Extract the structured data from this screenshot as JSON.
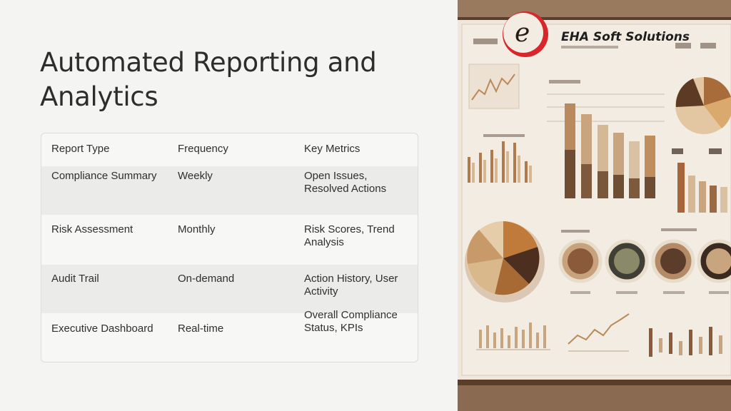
{
  "slide": {
    "title": "Automated Reporting and Analytics"
  },
  "table": {
    "headers": [
      "Report Type",
      "Frequency",
      "Key Metrics"
    ],
    "rows": [
      [
        "Compliance Summary",
        "Weekly",
        "Open Issues, Resolved Actions"
      ],
      [
        "Risk Assessment",
        "Monthly",
        "Risk Scores, Trend Analysis"
      ],
      [
        "Audit Trail",
        "On-demand",
        "Action History, User Activity"
      ],
      [
        "Executive Dashboard",
        "Real-time",
        "Overall Compliance Status, KPIs"
      ]
    ]
  },
  "image": {
    "brand": "EHA Soft Solutions",
    "logo_letter": "e"
  },
  "colors": {
    "title": "#2d2d2d",
    "text": "#2f2f2f",
    "row_alt": "#ebebea",
    "brand_red": "#d8262b",
    "chart_brown": "#8a5a2b",
    "chart_tan": "#c9a27a"
  }
}
